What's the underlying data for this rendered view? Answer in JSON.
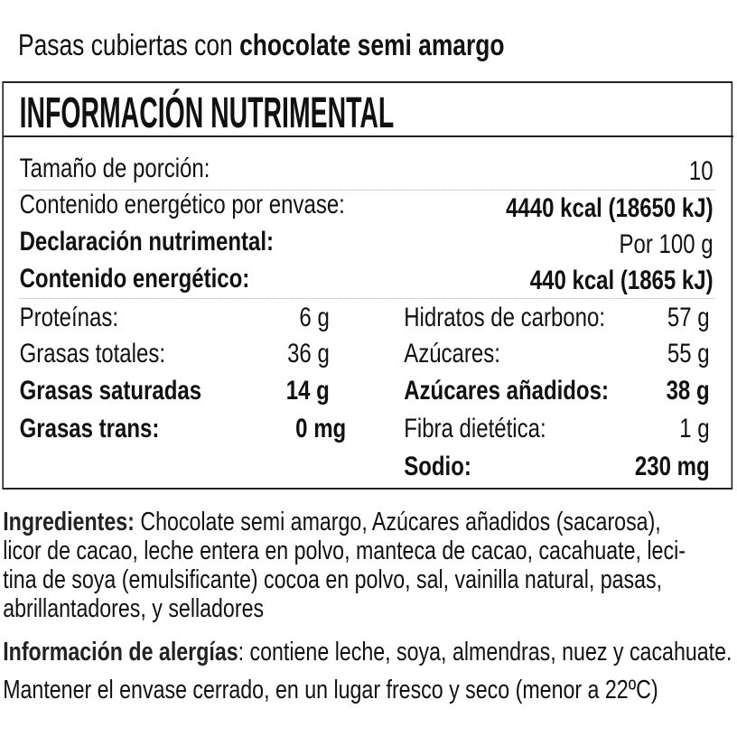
{
  "title": {
    "regular": "Pasas cubiertas con ",
    "bold": "chocolate semi amargo"
  },
  "panel": {
    "header": "INFORMACIÓN NUTRIMENTAL",
    "serving": {
      "label": "Tamaño de porción:",
      "value": "10"
    },
    "energy_package": {
      "label": "Contenido energético por envase:",
      "value": "4440 kcal (18650 kJ)"
    },
    "declaration": {
      "label": "Declaración nutrimental:",
      "value": "Por 100 g"
    },
    "energy": {
      "label": "Contenido energético:",
      "value": "440 kcal (1865 kJ)"
    },
    "left": [
      {
        "label": "Proteínas:",
        "value": "6 g"
      },
      {
        "label": "Grasas totales:",
        "value": "36 g"
      },
      {
        "label": "Grasas saturadas",
        "value": "14 g"
      },
      {
        "label": "Grasas trans:",
        "value": "0 mg"
      }
    ],
    "right": [
      {
        "label": "Hidratos de carbono:",
        "value": "57 g"
      },
      {
        "label": "Azúcares:",
        "value": "55 g"
      },
      {
        "label": "Azúcares añadidos:",
        "value": "38 g"
      },
      {
        "label": "Fibra dietética:",
        "value": "1 g"
      },
      {
        "label": "Sodio:",
        "value": "230 mg"
      }
    ]
  },
  "ingredients": {
    "label": "Ingredientes:",
    "lines": [
      " Chocolate semi amargo, Azúcares añadidos (sacarosa),",
      "licor de cacao, leche entera en polvo, manteca de cacao, cacahuate, leci-",
      "tina de soya (emulsificante) cocoa en polvo, sal, vainilla natural, pasas,",
      "abrillantadores, y selladores"
    ]
  },
  "allergies": {
    "label": "Información de alergías",
    "text": ": contiene leche, soya, almendras, nuez y cacahuate.",
    "storage": "Mantener el envase cerrado, en un lugar fresco y seco (menor a 22ºC)"
  }
}
